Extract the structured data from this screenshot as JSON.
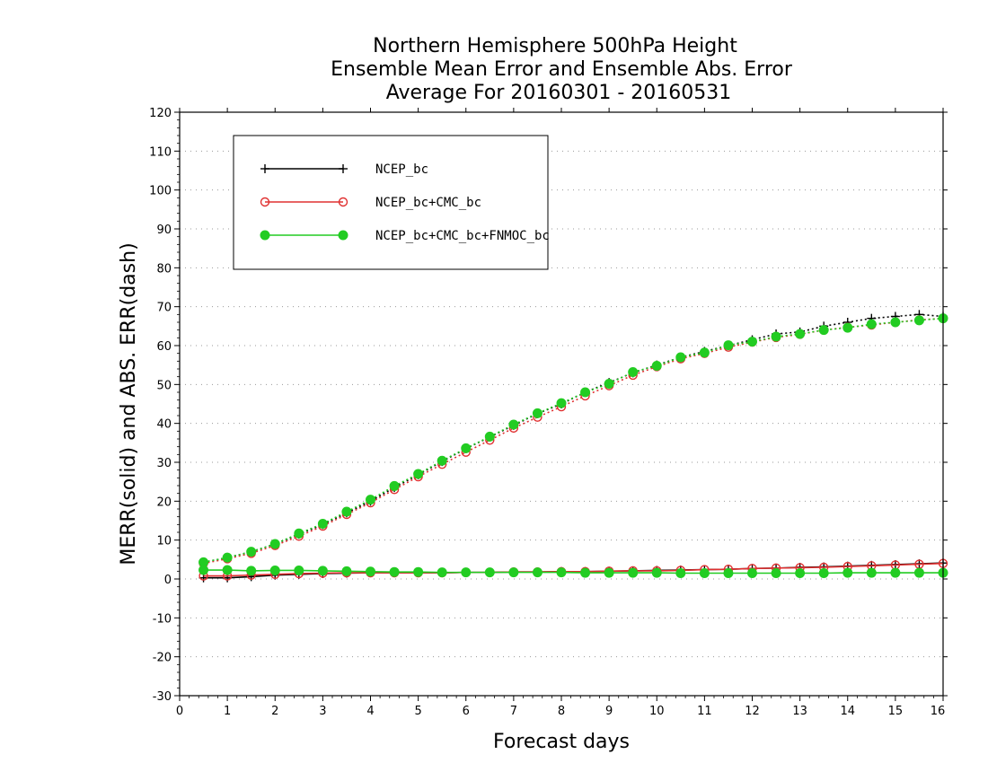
{
  "chart_data": {
    "type": "line",
    "title_lines": [
      "Northern Hemisphere 500hPa Height",
      "Ensemble Mean Error and Ensemble Abs. Error",
      "Average For 20160301 - 20160531"
    ],
    "xlabel": "Forecast days",
    "ylabel": "MERR(solid) and ABS. ERR(dash)",
    "xlim": [
      0,
      16
    ],
    "ylim": [
      -30,
      120
    ],
    "xticks": [
      0,
      1,
      2,
      3,
      4,
      5,
      6,
      7,
      8,
      9,
      10,
      11,
      12,
      13,
      14,
      15,
      16
    ],
    "yticks": [
      -30,
      -20,
      -10,
      0,
      10,
      20,
      30,
      40,
      50,
      60,
      70,
      80,
      90,
      100,
      110,
      120
    ],
    "grid": "horizontal dotted",
    "legend_position": "top-left",
    "x": [
      0.5,
      1,
      1.5,
      2,
      2.5,
      3,
      3.5,
      4,
      4.5,
      5,
      5.5,
      6,
      6.5,
      7,
      7.5,
      8,
      8.5,
      9,
      9.5,
      10,
      10.5,
      11,
      11.5,
      12,
      12.5,
      13,
      13.5,
      14,
      14.5,
      15,
      15.5,
      16
    ],
    "series": [
      {
        "name": "NCEP_bc",
        "color": "#000000",
        "marker": "plus",
        "merr": [
          0.3,
          0.3,
          0.6,
          1.0,
          1.2,
          1.4,
          1.5,
          1.6,
          1.6,
          1.6,
          1.6,
          1.7,
          1.7,
          1.8,
          1.8,
          1.9,
          1.9,
          2.0,
          2.1,
          2.2,
          2.3,
          2.4,
          2.5,
          2.7,
          2.8,
          3.0,
          3.1,
          3.3,
          3.5,
          3.7,
          3.9,
          4.1
        ],
        "abs_err": [
          4.3,
          5.5,
          7.0,
          9.0,
          11.5,
          14.0,
          17.0,
          20.0,
          23.5,
          26.8,
          30.2,
          33.5,
          36.5,
          39.5,
          42.5,
          45.0,
          48.0,
          50.5,
          53.0,
          55.0,
          57.0,
          58.5,
          60.0,
          61.5,
          63.0,
          63.5,
          65.0,
          66.0,
          67.0,
          67.5,
          68.0,
          67.5
        ]
      },
      {
        "name": "NCEP_bc+CMC_bc",
        "color": "#e03030",
        "marker": "open-circle",
        "merr": [
          0.8,
          0.8,
          1.0,
          1.2,
          1.4,
          1.5,
          1.6,
          1.6,
          1.6,
          1.6,
          1.6,
          1.7,
          1.7,
          1.8,
          1.8,
          1.9,
          1.9,
          2.0,
          2.1,
          2.1,
          2.2,
          2.4,
          2.5,
          2.7,
          2.8,
          2.9,
          3.0,
          3.2,
          3.4,
          3.6,
          3.8,
          4.0
        ],
        "abs_err": [
          4.0,
          5.2,
          6.6,
          8.6,
          11.0,
          13.6,
          16.6,
          19.6,
          23.0,
          26.3,
          29.5,
          32.6,
          35.7,
          38.8,
          41.6,
          44.3,
          47.1,
          49.7,
          52.4,
          54.6,
          56.6,
          58.0,
          59.6,
          60.9,
          62.1,
          62.9,
          64.0,
          64.7,
          65.3,
          66.0,
          66.6,
          67.0
        ]
      },
      {
        "name": "NCEP_bc+CMC_bc+FNMOC_bc",
        "color": "#22cc22",
        "marker": "filled-circle",
        "merr": [
          2.3,
          2.3,
          2.1,
          2.2,
          2.2,
          2.1,
          2.0,
          1.9,
          1.8,
          1.8,
          1.7,
          1.7,
          1.7,
          1.7,
          1.7,
          1.7,
          1.6,
          1.6,
          1.6,
          1.6,
          1.5,
          1.5,
          1.5,
          1.5,
          1.5,
          1.5,
          1.5,
          1.6,
          1.6,
          1.6,
          1.6,
          1.6
        ],
        "abs_err": [
          4.3,
          5.5,
          7.0,
          9.0,
          11.7,
          14.2,
          17.3,
          20.4,
          23.9,
          27.0,
          30.4,
          33.6,
          36.6,
          39.7,
          42.6,
          45.2,
          48.0,
          50.2,
          53.2,
          54.8,
          57.0,
          58.2,
          60.1,
          61.0,
          62.3,
          63.0,
          64.0,
          64.6,
          65.5,
          66.0,
          66.5,
          67.0
        ]
      }
    ]
  }
}
